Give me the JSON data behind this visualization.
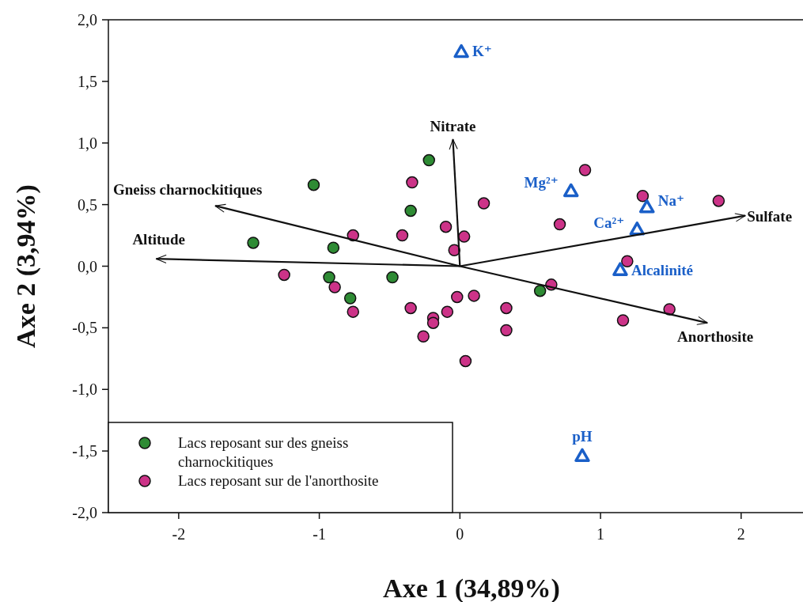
{
  "chart_data": {
    "type": "scatter",
    "xlabel": "Axe 1 (34,89%)",
    "ylabel": "Axe 2 (3,94%)",
    "xlim": [
      -2.5,
      2.44
    ],
    "ylim": [
      -2,
      2
    ],
    "xticks": [
      -2,
      -1,
      0,
      1,
      2
    ],
    "yticks": [
      {
        "value": -2,
        "label": "-2,0"
      },
      {
        "value": -1.5,
        "label": "-1,5"
      },
      {
        "value": -1,
        "label": "-1,0"
      },
      {
        "value": -0.5,
        "label": "-0,5"
      },
      {
        "value": 0,
        "label": "0,0"
      },
      {
        "value": 0.5,
        "label": "0,5"
      },
      {
        "value": 1,
        "label": "1,0"
      },
      {
        "value": 1.5,
        "label": "1,5"
      },
      {
        "value": 2,
        "label": "2,0"
      }
    ],
    "grid": false,
    "legend": "bottom left",
    "series": [
      {
        "name": "Lacs reposant sur des gneiss charnockitiques",
        "marker": "circle",
        "color": "#2e8b34",
        "x": [
          -1.04,
          -1.47,
          -0.9,
          -0.93,
          -0.78,
          -0.48,
          -0.22,
          -0.35,
          0.57
        ],
        "values": [
          0.66,
          0.19,
          0.15,
          -0.09,
          -0.26,
          -0.09,
          0.86,
          0.45,
          -0.2
        ]
      },
      {
        "name": "Lacs reposant sur de l'anorthosite",
        "marker": "circle",
        "color": "#cc3388",
        "x": [
          -0.34,
          -0.76,
          -1.25,
          -0.89,
          -0.76,
          -0.41,
          -0.1,
          -0.04,
          0.03,
          0.17,
          -0.35,
          -0.19,
          -0.19,
          -0.09,
          -0.26,
          -0.02,
          0.1,
          0.33,
          0.33,
          0.04,
          0.65,
          0.89,
          0.71,
          1.3,
          1.84,
          1.19,
          1.16,
          1.49
        ],
        "values": [
          0.68,
          0.25,
          -0.07,
          -0.17,
          -0.37,
          0.25,
          0.32,
          0.13,
          0.24,
          0.51,
          -0.34,
          -0.42,
          -0.46,
          -0.37,
          -0.57,
          -0.25,
          -0.24,
          -0.34,
          -0.52,
          -0.77,
          -0.15,
          0.78,
          0.34,
          0.57,
          0.53,
          0.04,
          -0.44,
          -0.35
        ]
      },
      {
        "marker": "triangle",
        "color": "#1a5fc8",
        "x": [
          0.01,
          0.79,
          1.33,
          1.26,
          1.14,
          0.87
        ],
        "values": [
          1.74,
          0.61,
          0.48,
          0.3,
          -0.03,
          -1.54
        ],
        "value_labels": [
          "K⁺",
          "Mg²⁺",
          "Na⁺",
          "Ca²⁺",
          "Alcalinité",
          "pH"
        ]
      },
      {
        "name": "Gneiss charnockitiques",
        "type": "line",
        "marker": "none",
        "color": "#111111",
        "x": [
          0,
          -1.74
        ],
        "values": [
          0,
          0.49
        ]
      },
      {
        "name": "Altitude",
        "type": "line",
        "marker": "none",
        "color": "#111111",
        "x": [
          0,
          -2.16
        ],
        "values": [
          0,
          0.06
        ]
      },
      {
        "name": "Nitrate",
        "type": "line",
        "marker": "none",
        "color": "#111111",
        "x": [
          0,
          -0.05
        ],
        "values": [
          0,
          1.03
        ]
      },
      {
        "name": "Sulfate",
        "type": "line",
        "marker": "none",
        "color": "#111111",
        "x": [
          0,
          2.03
        ],
        "values": [
          0,
          0.41
        ]
      },
      {
        "name": "Anorthosite",
        "type": "line",
        "marker": "none",
        "color": "#111111",
        "x": [
          0,
          1.76
        ],
        "values": [
          0,
          -0.46
        ]
      }
    ]
  }
}
